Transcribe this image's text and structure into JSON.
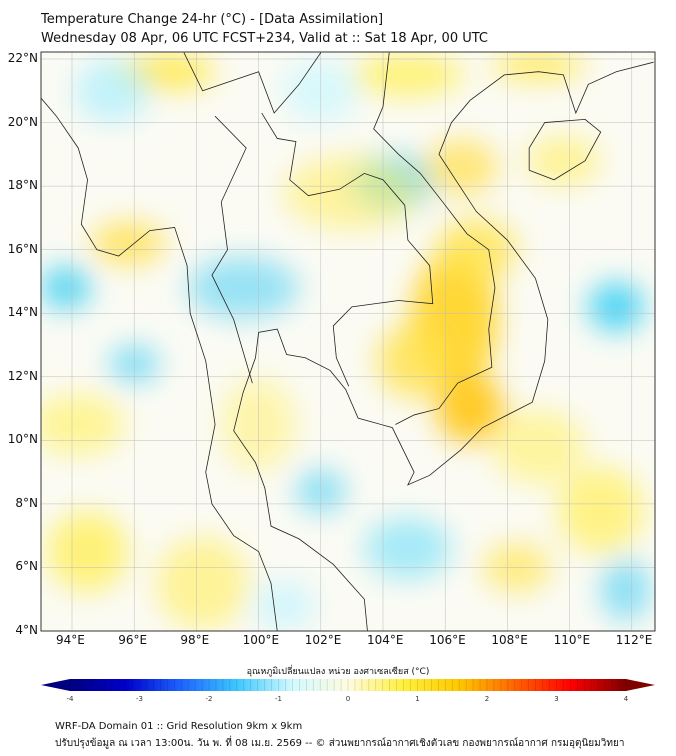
{
  "header": {
    "title": "Temperature Change 24-hr (°C) - [Data Assimilation]",
    "subtitle": "Wednesday 08 Apr, 06 UTC FCST+234, Valid at :: Sat 18 Apr, 00 UTC"
  },
  "map": {
    "lat_labels": [
      "22°N",
      "20°N",
      "18°N",
      "16°N",
      "14°N",
      "12°N",
      "10°N",
      "8°N",
      "6°N",
      "4°N"
    ],
    "lon_labels": [
      "94°E",
      "96°E",
      "98°E",
      "100°E",
      "102°E",
      "104°E",
      "106°E",
      "108°E",
      "110°E",
      "112°E"
    ],
    "extent_lon": [
      93,
      112.7
    ],
    "extent_lat": [
      4,
      22.2
    ]
  },
  "colorbar": {
    "label": "อุณหภูมิเปลี่ยนแปลง หน่วย องศาเซลเซียส (°C)",
    "ticks": [
      "-4",
      "-3",
      "-2",
      "-1",
      "0",
      "1",
      "2",
      "3",
      "4"
    ],
    "range": [
      -4,
      4
    ],
    "colors": [
      "#000080",
      "#0000cd",
      "#1e64ff",
      "#3cc8ff",
      "#d2faff",
      "#fffbe0",
      "#fff03c",
      "#ffc800",
      "#ff6400",
      "#ff0000",
      "#800000"
    ]
  },
  "footer": {
    "line1": "WRF-DA Domain 01 :: Grid Resolution 9km x 9km",
    "line2": "ปรับปรุงข้อมูล ณ เวลา 13:00น. วัน พ. ที่ 08 เม.ย. 2569 -- © ส่วนพยากรณ์อากาศเชิงตัวเลข กองพยากรณ์อากาศ กรมอุตุนิยมวิทยา"
  }
}
